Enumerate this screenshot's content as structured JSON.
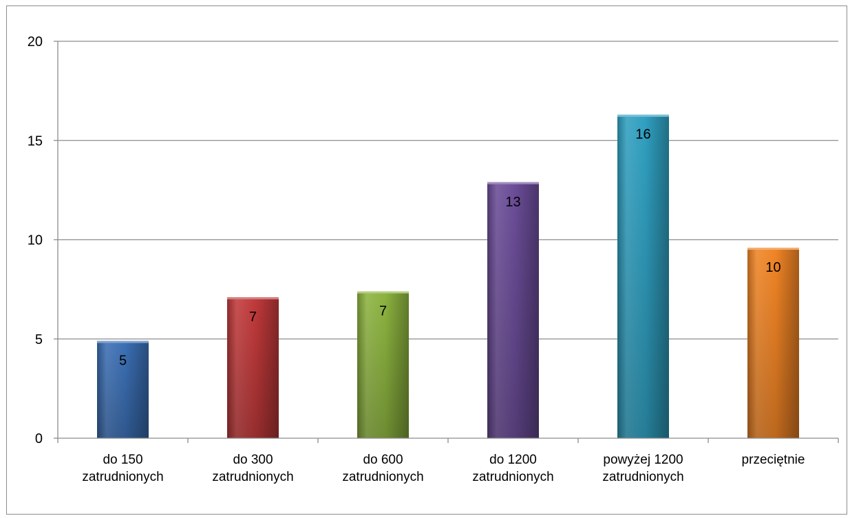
{
  "chart_data": {
    "type": "bar",
    "title": "",
    "xlabel": "",
    "ylabel": "",
    "ylim": [
      0,
      20
    ],
    "yticks": [
      0,
      5,
      10,
      15,
      20
    ],
    "grid": true,
    "legend": "none",
    "categories": [
      [
        "do 150",
        "zatrudnionych"
      ],
      [
        "do 300",
        "zatrudnionych"
      ],
      [
        "do 600",
        "zatrudnionych"
      ],
      [
        "do 1200",
        "zatrudnionych"
      ],
      [
        "powyżej 1200",
        "zatrudnionych"
      ],
      [
        "przeciętnie"
      ]
    ],
    "values": [
      4.9,
      7.1,
      7.4,
      12.9,
      16.3,
      9.6
    ],
    "data_labels": [
      "5",
      "7",
      "7",
      "13",
      "16",
      "10"
    ],
    "colors": [
      "#3b6fb4",
      "#c0393a",
      "#8cb33f",
      "#6a4c97",
      "#2f9fc0",
      "#f08425"
    ]
  }
}
